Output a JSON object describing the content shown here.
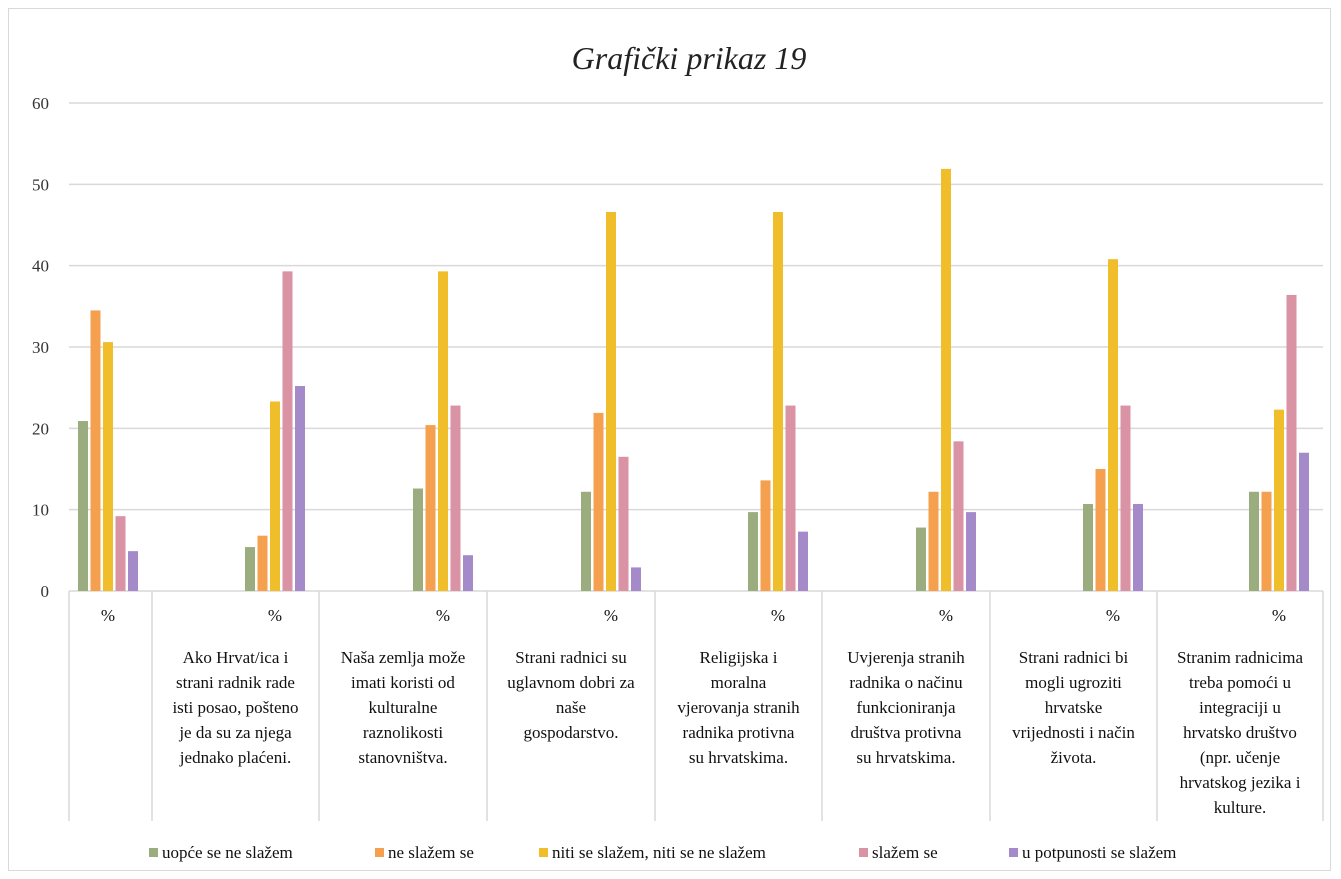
{
  "chart_data": {
    "type": "bar",
    "title": "Grafički prikaz 19",
    "xlabel": "",
    "ylabel": "",
    "ylim": [
      0,
      60
    ],
    "yticks": [
      0,
      10,
      20,
      30,
      40,
      50,
      60
    ],
    "grid": true,
    "legend_position": "bottom",
    "categories": [
      {
        "unit": "%",
        "label": ""
      },
      {
        "unit": "%",
        "label": "Ako Hrvat/ica i strani radnik rade isti posao, pošteno je da su za njega jednako plaćeni."
      },
      {
        "unit": "%",
        "label": "Naša zemlja može imati koristi od kulturalne raznolikosti stanovništva."
      },
      {
        "unit": "%",
        "label": "Strani radnici su uglavnom dobri za naše gospodarstvo."
      },
      {
        "unit": "%",
        "label": "Religijska i moralna vjerovanja stranih radnika protivna su hrvatskima."
      },
      {
        "unit": "%",
        "label": "Uvjerenja stranih radnika o načinu funkcioniranja društva protivna su hrvatskima."
      },
      {
        "unit": "%",
        "label": "Strani radnici bi mogli ugroziti hrvatske vrijednosti i način života."
      },
      {
        "unit": "%",
        "label": "Stranim radnicima treba pomoći u integraciji u hrvatsko društvo (npr. učenje hrvatskog jezika i kulture."
      }
    ],
    "category_label_lines": [
      [],
      [
        "Ako Hrvat/ica i",
        "strani radnik rade",
        "isti posao, pošteno",
        "je da su za njega",
        "jednako plaćeni."
      ],
      [
        "Naša zemlja može",
        "imati koristi od",
        "kulturalne",
        "raznolikosti",
        "stanovništva."
      ],
      [
        "Strani radnici su",
        "uglavnom dobri za",
        "naše",
        "gospodarstvo."
      ],
      [
        "Religijska i",
        "moralna",
        "vjerovanja stranih",
        "radnika protivna",
        "su hrvatskima."
      ],
      [
        "Uvjerenja stranih",
        "radnika o načinu",
        "funkcioniranja",
        "društva protivna",
        "su hrvatskima."
      ],
      [
        "Strani radnici bi",
        "mogli ugroziti",
        "hrvatske",
        "vrijednosti i način",
        "života."
      ],
      [
        "Stranim radnicima",
        "treba pomoći  u",
        "integraciji u",
        "hrvatsko društvo",
        "(npr. učenje",
        "hrvatskog jezika i",
        "kulture."
      ]
    ],
    "series": [
      {
        "name": "uopće se ne slažem",
        "color": "#9bad7e",
        "values": [
          20.9,
          5.4,
          12.6,
          12.2,
          9.7,
          7.8,
          10.7,
          12.2
        ]
      },
      {
        "name": "ne slažem se",
        "color": "#f4a04f",
        "values": [
          34.5,
          6.8,
          20.4,
          21.9,
          13.6,
          12.2,
          15.0,
          12.2
        ]
      },
      {
        "name": "niti se slažem, niti se ne slažem",
        "color": "#f0be2b",
        "values": [
          30.6,
          23.3,
          39.3,
          46.6,
          46.6,
          51.9,
          40.8,
          22.3
        ]
      },
      {
        "name": "slažem se",
        "color": "#d993a5",
        "values": [
          9.2,
          39.3,
          22.8,
          16.5,
          22.8,
          18.4,
          22.8,
          36.4
        ]
      },
      {
        "name": "u potpunosti se slažem",
        "color": "#a48ac8",
        "values": [
          4.9,
          25.2,
          4.4,
          2.9,
          7.3,
          9.7,
          10.7,
          17.0
        ]
      }
    ]
  }
}
